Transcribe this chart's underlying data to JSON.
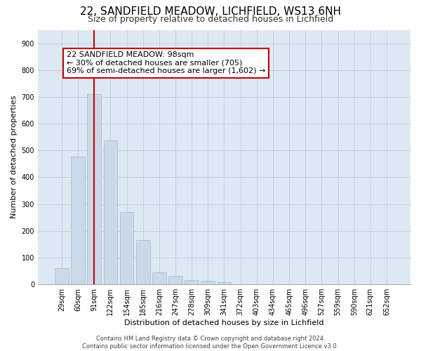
{
  "title1": "22, SANDFIELD MEADOW, LICHFIELD, WS13 6NH",
  "title2": "Size of property relative to detached houses in Lichfield",
  "xlabel": "Distribution of detached houses by size in Lichfield",
  "ylabel": "Number of detached properties",
  "bar_values": [
    60,
    477,
    711,
    537,
    271,
    165,
    46,
    32,
    16,
    14,
    9,
    0,
    0,
    0,
    0,
    0,
    0,
    0,
    0,
    0,
    0
  ],
  "bar_labels": [
    "29sqm",
    "60sqm",
    "91sqm",
    "122sqm",
    "154sqm",
    "185sqm",
    "216sqm",
    "247sqm",
    "278sqm",
    "309sqm",
    "341sqm",
    "372sqm",
    "403sqm",
    "434sqm",
    "465sqm",
    "496sqm",
    "527sqm",
    "559sqm",
    "590sqm",
    "621sqm",
    "652sqm"
  ],
  "bar_color": "#c9d9e8",
  "bar_edgecolor": "#a0bcd0",
  "vline_x": 2,
  "vline_color": "#cc0000",
  "annotation_text": "22 SANDFIELD MEADOW: 98sqm\n← 30% of detached houses are smaller (705)\n69% of semi-detached houses are larger (1,602) →",
  "annotation_box_color": "#ffffff",
  "annotation_box_edgecolor": "#cc0000",
  "ylim": [
    0,
    950
  ],
  "yticks": [
    0,
    100,
    200,
    300,
    400,
    500,
    600,
    700,
    800,
    900
  ],
  "footer_text": "Contains HM Land Registry data © Crown copyright and database right 2024.\nContains public sector information licensed under the Open Government Licence v3.0.",
  "grid_color": "#cccccc",
  "bg_color": "#dde8f5",
  "fig_bg_color": "#ffffff",
  "title1_fontsize": 11,
  "title2_fontsize": 9,
  "annot_fontsize": 8,
  "axis_fontsize": 8,
  "tick_fontsize": 7,
  "footer_fontsize": 6
}
